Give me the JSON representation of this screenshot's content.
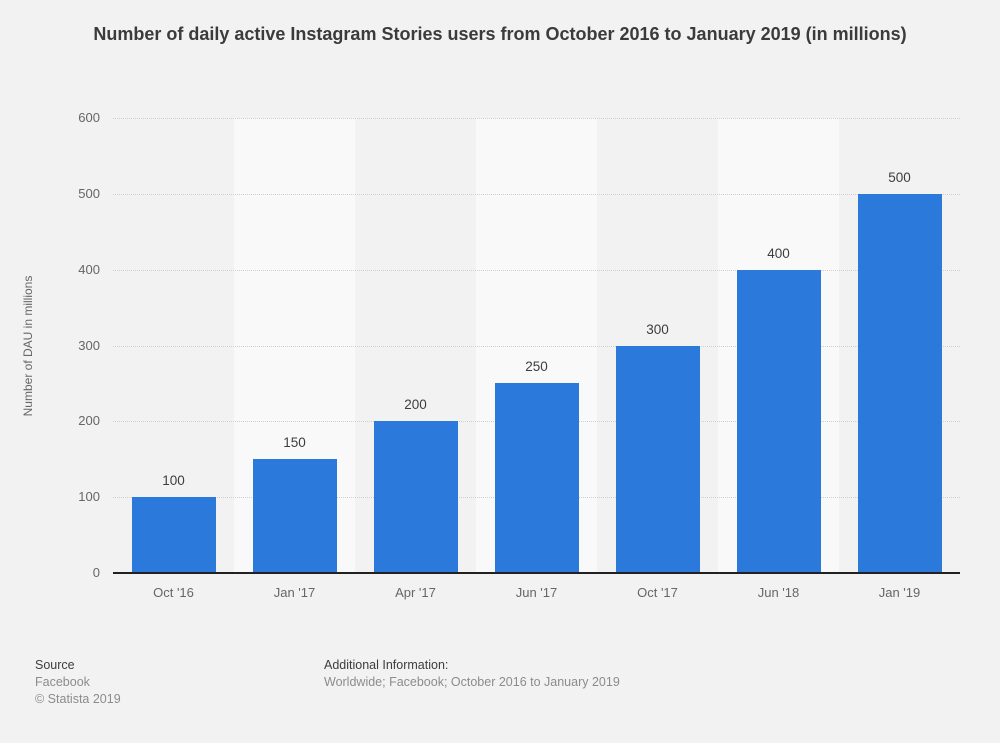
{
  "page": {
    "background_color": "#f2f2f2",
    "band_color": "#f9f9f9"
  },
  "title": "Number of daily active Instagram Stories users from October 2016 to January 2019 (in millions)",
  "chart_data": {
    "type": "bar",
    "categories": [
      "Oct '16",
      "Jan '17",
      "Apr '17",
      "Jun '17",
      "Oct '17",
      "Jun '18",
      "Jan '19"
    ],
    "values": [
      100,
      150,
      200,
      250,
      300,
      400,
      500
    ],
    "title": "Number of daily active Instagram Stories users from October 2016 to January 2019 (in millions)",
    "xlabel": "",
    "ylabel": "Number of DAU in millions",
    "ylim": [
      0,
      600
    ],
    "yticks": [
      0,
      100,
      200,
      300,
      400,
      500,
      600
    ],
    "grid": "horizontal-dotted",
    "legend": "none",
    "bar_color": "#2c79dc",
    "baseline_color": "#212121",
    "gridline_color": "#cfcfcf",
    "tick_label_color": "#666666",
    "value_label_color": "#3d3d3d",
    "alternating_bands": true
  },
  "footer": {
    "source_label": "Source",
    "source_value": "Facebook",
    "copyright": "© Statista 2019",
    "additional_label": "Additional Information:",
    "additional_value": "Worldwide; Facebook; October 2016 to January 2019"
  }
}
